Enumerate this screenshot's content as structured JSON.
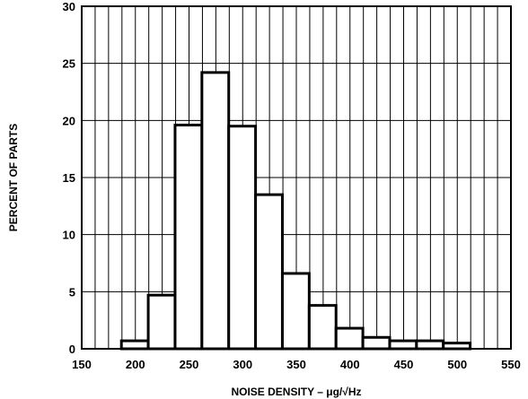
{
  "chart_data": {
    "type": "bar",
    "title": "",
    "xlabel": "NOISE DENSITY – μg/√Hz",
    "ylabel": "PERCENT OF PARTS",
    "xlim": [
      150,
      550
    ],
    "ylim": [
      0,
      30
    ],
    "grid": true,
    "xticks": [
      150,
      200,
      250,
      300,
      350,
      400,
      450,
      500,
      550
    ],
    "yticks": [
      0,
      5,
      10,
      15,
      20,
      25,
      30
    ],
    "bin_width": 25,
    "bins": [
      {
        "x": 200,
        "value": 0.7
      },
      {
        "x": 225,
        "value": 4.7
      },
      {
        "x": 250,
        "value": 19.6
      },
      {
        "x": 275,
        "value": 24.2
      },
      {
        "x": 300,
        "value": 19.5
      },
      {
        "x": 325,
        "value": 13.5
      },
      {
        "x": 350,
        "value": 6.6
      },
      {
        "x": 375,
        "value": 3.8
      },
      {
        "x": 400,
        "value": 1.8
      },
      {
        "x": 425,
        "value": 1.0
      },
      {
        "x": 450,
        "value": 0.7
      },
      {
        "x": 475,
        "value": 0.7
      },
      {
        "x": 500,
        "value": 0.5
      }
    ]
  }
}
